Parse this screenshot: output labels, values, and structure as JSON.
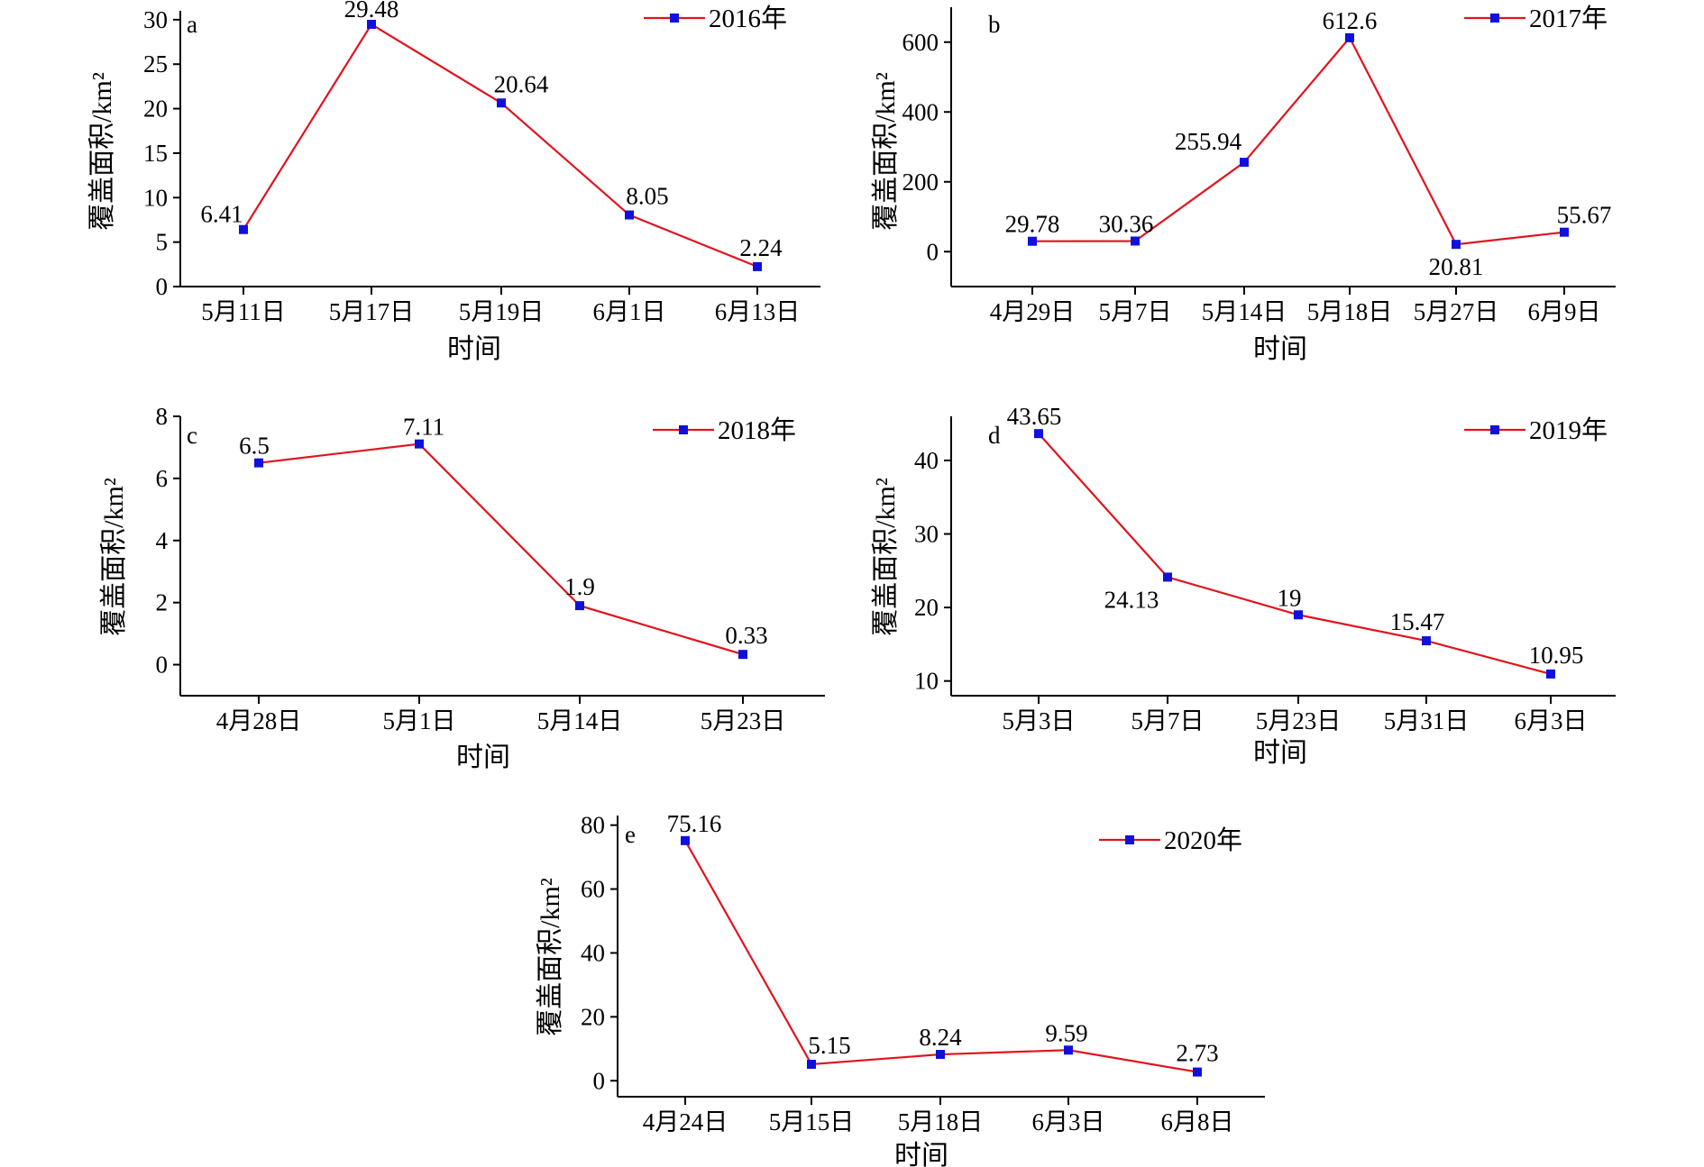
{
  "colors": {
    "line": "#e0141e",
    "marker": "#1010dd",
    "axis": "#000000"
  },
  "chart_data": [
    {
      "type": "line",
      "panel": "a",
      "categories": [
        "5月11日",
        "5月17日",
        "5月19日",
        "6月1日",
        "6月13日"
      ],
      "series": [
        {
          "name": "2016年",
          "values": [
            6.41,
            29.48,
            20.64,
            8.05,
            2.24
          ]
        }
      ],
      "data_labels": [
        "6.41",
        "29.48",
        "20.64",
        "8.05",
        "2.24"
      ],
      "xlabel": "时间",
      "ylabel": "覆盖面积/km²",
      "ylim": [
        0,
        31
      ],
      "yticks": [
        0,
        5,
        10,
        15,
        20,
        25,
        30
      ],
      "legend": "top-right",
      "grid": false
    },
    {
      "type": "line",
      "panel": "b",
      "categories": [
        "4月29日",
        "5月7日",
        "5月14日",
        "5月18日",
        "5月27日",
        "6月9日"
      ],
      "series": [
        {
          "name": "2017年",
          "values": [
            29.78,
            30.36,
            255.94,
            612.6,
            20.81,
            55.67
          ]
        }
      ],
      "data_labels": [
        "29.78",
        "30.36",
        "255.94",
        "612.6",
        "20.81",
        "55.67"
      ],
      "xlabel": "时间",
      "ylabel": "覆盖面积/km²",
      "ylim": [
        -100,
        700
      ],
      "yticks": [
        0,
        200,
        400,
        600
      ],
      "legend": "top-right",
      "grid": false
    },
    {
      "type": "line",
      "panel": "c",
      "categories": [
        "4月28日",
        "5月1日",
        "5月14日",
        "5月23日"
      ],
      "series": [
        {
          "name": "2018年",
          "values": [
            6.5,
            7.11,
            1.9,
            0.33
          ]
        }
      ],
      "data_labels": [
        "6.5",
        "7.11",
        "1.9",
        "0.33"
      ],
      "xlabel": "时间",
      "ylabel": "覆盖面积/km²",
      "ylim": [
        -1,
        8
      ],
      "yticks": [
        0,
        2,
        4,
        6,
        8
      ],
      "legend": "top-right",
      "grid": false
    },
    {
      "type": "line",
      "panel": "d",
      "categories": [
        "5月3日",
        "5月7日",
        "5月23日",
        "5月31日",
        "6月3日"
      ],
      "series": [
        {
          "name": "2019年",
          "values": [
            43.65,
            24.13,
            19,
            15.47,
            10.95
          ]
        }
      ],
      "data_labels": [
        "43.65",
        "24.13",
        "19",
        "15.47",
        "10.95"
      ],
      "xlabel": "时间",
      "ylabel": "覆盖面积/km²",
      "ylim": [
        8,
        46
      ],
      "yticks": [
        10,
        20,
        30,
        40
      ],
      "legend": "top-right",
      "grid": false
    },
    {
      "type": "line",
      "panel": "e",
      "categories": [
        "4月24日",
        "5月15日",
        "5月18日",
        "6月3日",
        "6月8日"
      ],
      "series": [
        {
          "name": "2020年",
          "values": [
            75.16,
            5.15,
            8.24,
            9.59,
            2.73
          ]
        }
      ],
      "data_labels": [
        "75.16",
        "5.15",
        "8.24",
        "9.59",
        "2.73"
      ],
      "xlabel": "时间",
      "ylabel": "覆盖面积/km²",
      "ylim": [
        -5,
        83
      ],
      "yticks": [
        0,
        20,
        40,
        60,
        80
      ],
      "legend": "top-right",
      "grid": false
    }
  ]
}
